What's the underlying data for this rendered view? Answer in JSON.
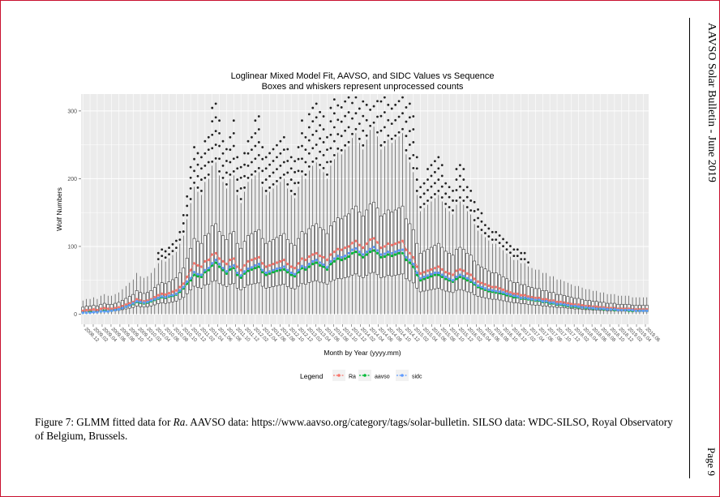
{
  "page": {
    "side_header": "AAVSO Solar Bulletin - June 2019",
    "page_number": "Page 9",
    "caption_prefix": "Figure 7: GLMM fitted data for ",
    "caption_ra": "Ra",
    "caption_suffix": ". AAVSO data: https://www.aavso.org/category/tags/solar-bulletin. SILSO data: WDC-SILSO, Royal Observatory of Belgium, Brussels."
  },
  "colors": {
    "panel": "#ebebeb",
    "grid": "#ffffff",
    "Ra": "#f8766d",
    "aavso": "#00ba38",
    "sidc": "#619cff"
  },
  "chart_data": {
    "type": "box",
    "title": "Loglinear Mixed Model Fit, AAVSO, and SIDC Values vs Sequence",
    "subtitle": "Boxes and whiskers represent unprocessed counts",
    "xlabel": "Month by Year (yyyy.mm)",
    "ylabel": "Wolf Numbers",
    "ylim": [
      -15,
      325
    ],
    "yticks": [
      0,
      100,
      200,
      300
    ],
    "legend": {
      "title": "Legend",
      "entries": [
        "Ra",
        "aavso",
        "sidc"
      ],
      "position": "bottom"
    },
    "x_start": "2008.12",
    "x_end": "2019.06",
    "x_tick_labels": [
      "2008.12",
      "2009.02",
      "2009.04",
      "2009.06",
      "2009.08",
      "2009.10",
      "2009.12",
      "2010.02",
      "2010.04",
      "2010.06",
      "2010.08",
      "2010.10",
      "2010.12",
      "2011.02",
      "2011.04",
      "2011.06",
      "2011.08",
      "2011.10",
      "2011.12",
      "2012.02",
      "2012.04",
      "2012.06",
      "2012.08",
      "2012.10",
      "2012.12",
      "2013.02",
      "2013.04",
      "2013.06",
      "2013.08",
      "2013.10",
      "2013.12",
      "2014.02",
      "2014.04",
      "2014.06",
      "2014.08",
      "2014.10",
      "2014.12",
      "2015.02",
      "2015.04",
      "2015.06",
      "2015.08",
      "2015.10",
      "2015.12",
      "2016.02",
      "2016.04",
      "2016.06",
      "2016.08",
      "2016.10",
      "2016.12",
      "2017.02",
      "2017.04",
      "2017.06",
      "2017.08",
      "2017.10",
      "2017.12",
      "2018.02",
      "2018.04",
      "2018.06",
      "2018.08",
      "2018.10",
      "2018.12",
      "2019.02",
      "2019.04",
      "2019.06"
    ],
    "series": [
      {
        "name": "Ra",
        "values": [
          5,
          6,
          6,
          7,
          6,
          8,
          9,
          8,
          8,
          9,
          10,
          12,
          14,
          16,
          18,
          22,
          20,
          19,
          20,
          22,
          25,
          28,
          30,
          29,
          31,
          33,
          35,
          40,
          45,
          55,
          65,
          75,
          72,
          70,
          78,
          80,
          88,
          90,
          82,
          78,
          74,
          80,
          82,
          70,
          65,
          72,
          78,
          80,
          82,
          84,
          75,
          70,
          72,
          74,
          76,
          78,
          80,
          74,
          70,
          68,
          75,
          82,
          80,
          85,
          88,
          90,
          86,
          84,
          80,
          88,
          92,
          96,
          95,
          98,
          100,
          105,
          108,
          102,
          98,
          104,
          110,
          112,
          106,
          98,
          100,
          104,
          102,
          104,
          106,
          108,
          95,
          90,
          84,
          70,
          60,
          62,
          64,
          66,
          68,
          70,
          66,
          62,
          60,
          58,
          64,
          66,
          64,
          60,
          58,
          52,
          48,
          46,
          44,
          42,
          40,
          40,
          38,
          36,
          34,
          32,
          30,
          30,
          28,
          28,
          26,
          25,
          24,
          24,
          22,
          22,
          20,
          20,
          18,
          18,
          17,
          16,
          15,
          14,
          14,
          13,
          12,
          12,
          11,
          11,
          10,
          10,
          9,
          9,
          9,
          8,
          8,
          8,
          8,
          7,
          7,
          7,
          7,
          7
        ]
      },
      {
        "name": "aavso",
        "values": [
          2,
          2,
          3,
          3,
          3,
          4,
          5,
          4,
          5,
          6,
          7,
          9,
          11,
          13,
          15,
          18,
          17,
          16,
          17,
          19,
          21,
          23,
          25,
          24,
          26,
          27,
          29,
          33,
          38,
          45,
          50,
          58,
          56,
          55,
          62,
          65,
          72,
          76,
          70,
          65,
          60,
          66,
          68,
          58,
          54,
          60,
          64,
          66,
          68,
          70,
          62,
          58,
          60,
          62,
          64,
          65,
          66,
          62,
          58,
          56,
          62,
          68,
          66,
          70,
          74,
          76,
          72,
          70,
          66,
          74,
          78,
          82,
          80,
          82,
          85,
          90,
          92,
          88,
          84,
          88,
          92,
          94,
          90,
          84,
          85,
          88,
          86,
          88,
          90,
          90,
          80,
          76,
          70,
          58,
          50,
          52,
          54,
          56,
          58,
          58,
          55,
          52,
          50,
          48,
          52,
          55,
          53,
          50,
          48,
          44,
          40,
          38,
          36,
          34,
          33,
          32,
          31,
          30,
          28,
          27,
          25,
          25,
          23,
          23,
          22,
          21,
          20,
          20,
          18,
          18,
          16,
          16,
          14,
          14,
          13,
          12,
          11,
          11,
          10,
          10,
          9,
          9,
          8,
          8,
          8,
          7,
          7,
          7,
          6,
          6,
          6,
          6,
          5,
          5,
          5,
          5,
          5,
          5
        ]
      },
      {
        "name": "sidc",
        "values": [
          2,
          2,
          2,
          3,
          3,
          4,
          4,
          4,
          5,
          6,
          7,
          9,
          11,
          13,
          16,
          19,
          18,
          17,
          18,
          20,
          22,
          24,
          26,
          25,
          27,
          28,
          30,
          35,
          40,
          48,
          53,
          62,
          59,
          58,
          65,
          68,
          75,
          80,
          74,
          68,
          63,
          70,
          72,
          61,
          57,
          63,
          67,
          69,
          72,
          74,
          65,
          61,
          63,
          65,
          67,
          68,
          70,
          65,
          61,
          59,
          65,
          71,
          69,
          74,
          78,
          80,
          76,
          73,
          69,
          78,
          82,
          86,
          84,
          86,
          90,
          95,
          97,
          92,
          88,
          92,
          96,
          99,
          94,
          88,
          89,
          92,
          90,
          92,
          94,
          95,
          84,
          80,
          74,
          61,
          53,
          55,
          57,
          59,
          61,
          61,
          58,
          55,
          52,
          50,
          55,
          58,
          56,
          53,
          50,
          46,
          42,
          40,
          38,
          36,
          35,
          34,
          33,
          32,
          30,
          29,
          27,
          26,
          24,
          24,
          23,
          22,
          21,
          21,
          19,
          19,
          17,
          17,
          15,
          15,
          14,
          13,
          12,
          12,
          11,
          10,
          10,
          9,
          9,
          8,
          8,
          8,
          7,
          7,
          7,
          6,
          6,
          6,
          6,
          6,
          5,
          5,
          5,
          5
        ]
      }
    ]
  }
}
